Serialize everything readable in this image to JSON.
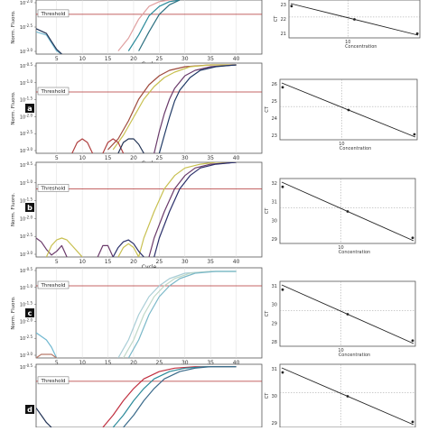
{
  "chart_data": [
    {
      "type": "line",
      "panel": "",
      "xlabel": "Cycle",
      "ylabel": "Norm. Fluoro.",
      "x_ticks": [
        5,
        10,
        15,
        20,
        25,
        30,
        35,
        40
      ],
      "y_ticks": [
        "10^-2.0",
        "10^-2.5",
        "10^-3.0"
      ],
      "xlim": [
        1,
        45
      ],
      "ylim": [
        -3.2,
        -1.5
      ],
      "yscale": "log10",
      "threshold_label": "Threshold",
      "threshold": -1.95,
      "series": [
        {
          "color": "#e0a0a0",
          "x": [
            17,
            19,
            21,
            23,
            25,
            27,
            29
          ],
          "y": [
            -3.1,
            -2.7,
            -2.1,
            -1.7,
            -1.55,
            -1.5,
            -1.5
          ]
        },
        {
          "color": "#2a8a9a",
          "x": [
            19,
            21,
            23,
            25,
            27,
            29
          ],
          "y": [
            -3.1,
            -2.6,
            -2.0,
            -1.7,
            -1.55,
            -1.5
          ]
        },
        {
          "color": "#2b6f80",
          "x": [
            21,
            23,
            25,
            27,
            29
          ],
          "y": [
            -3.1,
            -2.5,
            -1.95,
            -1.65,
            -1.5
          ]
        },
        {
          "color": "#70b8d0",
          "x": [
            1,
            3,
            4,
            5,
            6
          ],
          "y": [
            -2.5,
            -2.6,
            -2.85,
            -3.1,
            -3.2
          ]
        },
        {
          "color": "#223355",
          "x": [
            1,
            3,
            4,
            5,
            6
          ],
          "y": [
            -2.4,
            -2.55,
            -2.8,
            -3.05,
            -3.2
          ]
        }
      ],
      "std_curve": {
        "xlabel": "Concentration",
        "ylabel": "CT",
        "y_ticks": [
          "23",
          "22",
          "21"
        ],
        "x_tick_labels": [
          "10"
        ]
      }
    },
    {
      "type": "line",
      "panel": "a",
      "xlabel": "Cycle",
      "ylabel": "Norm. Fluoro.",
      "x_ticks": [
        5,
        10,
        15,
        20,
        25,
        30,
        35,
        40
      ],
      "y_ticks": [
        "10^-0.5",
        "10^-1.0",
        "10^-1.5",
        "10^-2.0",
        "10^-2.5",
        "10^-3.0"
      ],
      "xlim": [
        1,
        45
      ],
      "ylim": [
        -3.0,
        -0.5
      ],
      "yscale": "log10",
      "threshold_label": "Threshold",
      "threshold": -1.3,
      "series": [
        {
          "color": "#9e4a3c",
          "x": [
            15,
            17,
            19,
            21,
            23,
            25,
            27,
            30,
            35,
            40
          ],
          "y": [
            -2.9,
            -2.6,
            -2.1,
            -1.5,
            -1.1,
            -0.85,
            -0.7,
            -0.6,
            -0.55,
            -0.55
          ]
        },
        {
          "color": "#c8c050",
          "x": [
            16,
            18,
            20,
            22,
            24,
            26,
            28,
            31,
            35,
            40
          ],
          "y": [
            -2.9,
            -2.5,
            -2.0,
            -1.5,
            -1.15,
            -0.9,
            -0.75,
            -0.6,
            -0.55,
            -0.55
          ]
        },
        {
          "color": "#6a3a6a",
          "x": [
            24,
            25,
            26,
            27,
            28,
            30,
            32,
            35,
            40
          ],
          "y": [
            -3.0,
            -2.4,
            -1.9,
            -1.5,
            -1.2,
            -0.85,
            -0.7,
            -0.6,
            -0.55
          ]
        },
        {
          "color": "#203a66",
          "x": [
            25,
            26,
            27,
            28,
            29,
            31,
            33,
            36,
            40
          ],
          "y": [
            -3.0,
            -2.5,
            -2.0,
            -1.55,
            -1.25,
            -0.9,
            -0.7,
            -0.6,
            -0.55
          ]
        },
        {
          "color": "#b04040",
          "x": [
            8,
            9,
            10,
            11,
            12
          ],
          "y": [
            -3.0,
            -2.7,
            -2.6,
            -2.7,
            -3.0
          ]
        },
        {
          "color": "#b04040",
          "x": [
            14,
            15,
            16,
            17,
            18
          ],
          "y": [
            -3.0,
            -2.7,
            -2.6,
            -2.7,
            -3.0
          ]
        },
        {
          "color": "#223355",
          "x": [
            17,
            18,
            19,
            20,
            21,
            22
          ],
          "y": [
            -3.0,
            -2.7,
            -2.6,
            -2.6,
            -2.75,
            -3.0
          ]
        }
      ],
      "std_curve": {
        "xlabel": "Concentration",
        "ylabel": "CT",
        "y_ticks": [
          "26",
          "25",
          "24",
          "23"
        ],
        "x_tick_labels": [
          "10"
        ]
      }
    },
    {
      "type": "line",
      "panel": "b",
      "xlabel": "Cycle",
      "ylabel": "Norm. Fluoro.",
      "x_ticks": [
        5,
        10,
        15,
        20,
        25,
        30,
        35,
        40
      ],
      "y_ticks": [
        "10^-0.5",
        "10^-1.0",
        "10^-1.5",
        "10^-2.0",
        "10^-2.5",
        "10^-3.0"
      ],
      "xlim": [
        1,
        45
      ],
      "ylim": [
        -3.0,
        -0.5
      ],
      "yscale": "log10",
      "threshold_label": "Threshold",
      "threshold": -1.2,
      "series": [
        {
          "color": "#c8c050",
          "x": [
            21,
            22,
            24,
            26,
            28,
            30,
            33,
            36,
            40
          ],
          "y": [
            -3.0,
            -2.5,
            -1.8,
            -1.2,
            -0.85,
            -0.65,
            -0.55,
            -0.5,
            -0.5
          ]
        },
        {
          "color": "#6a3a6a",
          "x": [
            23,
            24,
            26,
            28,
            30,
            32,
            35,
            40
          ],
          "y": [
            -3.0,
            -2.5,
            -1.8,
            -1.2,
            -0.85,
            -0.65,
            -0.55,
            -0.5
          ]
        },
        {
          "color": "#2a2f6a",
          "x": [
            24,
            25,
            27,
            29,
            31,
            33,
            36,
            40
          ],
          "y": [
            -3.0,
            -2.5,
            -1.8,
            -1.2,
            -0.85,
            -0.65,
            -0.55,
            -0.5
          ]
        },
        {
          "color": "#6a3a6a",
          "x": [
            1,
            2,
            3,
            4,
            5,
            6,
            7
          ],
          "y": [
            -2.5,
            -2.6,
            -2.8,
            -2.95,
            -2.85,
            -2.7,
            -3.0
          ]
        },
        {
          "color": "#c8c050",
          "x": [
            3,
            4,
            5,
            6,
            7,
            8,
            9,
            10
          ],
          "y": [
            -3.0,
            -2.7,
            -2.55,
            -2.5,
            -2.55,
            -2.7,
            -2.85,
            -3.0
          ]
        },
        {
          "color": "#6a3a6a",
          "x": [
            13,
            14,
            15,
            16
          ],
          "y": [
            -3.0,
            -2.7,
            -2.7,
            -3.0
          ]
        },
        {
          "color": "#c8c050",
          "x": [
            17,
            18,
            19,
            20,
            21
          ],
          "y": [
            -3.0,
            -2.75,
            -2.65,
            -2.75,
            -3.0
          ]
        },
        {
          "color": "#2a2f6a",
          "x": [
            16,
            17,
            18,
            19,
            20,
            21,
            22
          ],
          "y": [
            -3.0,
            -2.75,
            -2.6,
            -2.55,
            -2.65,
            -2.85,
            -3.0
          ]
        }
      ],
      "std_curve": {
        "xlabel": "Concentration",
        "ylabel": "CT",
        "y_ticks": [
          "32",
          "31",
          "30",
          "29"
        ],
        "x_tick_labels": [
          "10"
        ]
      }
    },
    {
      "type": "line",
      "panel": "c",
      "xlabel": "Cycle",
      "ylabel": "Norm. Fluoro.",
      "x_ticks": [
        5,
        10,
        15,
        20,
        25,
        30,
        35,
        40
      ],
      "y_ticks": [
        "10^-0.5",
        "10^-1.0",
        "10^-1.5",
        "10^-2.0",
        "10^-2.5",
        "10^-3.0"
      ],
      "xlim": [
        1,
        45
      ],
      "ylim": [
        -3.0,
        -0.5
      ],
      "yscale": "log10",
      "threshold_label": "Threshold",
      "threshold": -1.0,
      "series": [
        {
          "color": "#a8cdd6",
          "x": [
            17,
            19,
            21,
            23,
            25,
            27,
            30,
            35,
            40
          ],
          "y": [
            -3.0,
            -2.5,
            -1.8,
            -1.3,
            -1.0,
            -0.8,
            -0.65,
            -0.6,
            -0.6
          ]
        },
        {
          "color": "#c0d8c8",
          "x": [
            18,
            20,
            22,
            24,
            26,
            28,
            31,
            35,
            40
          ],
          "y": [
            -3.0,
            -2.5,
            -1.8,
            -1.3,
            -1.0,
            -0.8,
            -0.65,
            -0.6,
            -0.6
          ]
        },
        {
          "color": "#7ab8c8",
          "x": [
            19,
            21,
            23,
            25,
            27,
            29,
            32,
            36,
            40
          ],
          "y": [
            -3.0,
            -2.5,
            -1.8,
            -1.3,
            -1.0,
            -0.8,
            -0.65,
            -0.6,
            -0.6
          ]
        },
        {
          "color": "#70b8d0",
          "x": [
            1,
            3,
            4,
            5,
            6
          ],
          "y": [
            -2.3,
            -2.5,
            -2.7,
            -3.0,
            -3.1
          ]
        },
        {
          "color": "#b87a6a",
          "x": [
            1,
            2,
            4,
            5
          ],
          "y": [
            -3.0,
            -2.9,
            -2.9,
            -3.0
          ]
        }
      ],
      "std_curve": {
        "xlabel": "Concentration",
        "ylabel": "CT",
        "y_ticks": [
          "31",
          "30",
          "29",
          "28"
        ],
        "x_tick_labels": [
          "10"
        ]
      }
    },
    {
      "type": "line",
      "panel": "d",
      "xlabel": "",
      "ylabel": "",
      "x_ticks": [],
      "y_ticks": [
        "10^-0.5"
      ],
      "xlim": [
        1,
        45
      ],
      "ylim": [
        -1.8,
        -0.5
      ],
      "yscale": "log10",
      "threshold_label": "Threshold",
      "threshold": -0.85,
      "series": [
        {
          "color": "#c03040",
          "x": [
            14,
            16,
            18,
            20,
            22,
            25,
            28,
            32,
            36,
            40
          ],
          "y": [
            -1.8,
            -1.55,
            -1.25,
            -1.0,
            -0.8,
            -0.65,
            -0.58,
            -0.55,
            -0.55,
            -0.55
          ]
        },
        {
          "color": "#2a8a9a",
          "x": [
            16,
            18,
            20,
            22,
            24,
            27,
            30,
            34,
            38,
            40
          ],
          "y": [
            -1.8,
            -1.55,
            -1.25,
            -1.0,
            -0.8,
            -0.65,
            -0.58,
            -0.55,
            -0.55,
            -0.55
          ]
        },
        {
          "color": "#3a6a8a",
          "x": [
            18,
            20,
            22,
            24,
            26,
            29,
            32,
            35,
            40
          ],
          "y": [
            -1.8,
            -1.55,
            -1.25,
            -1.0,
            -0.8,
            -0.65,
            -0.58,
            -0.55,
            -0.55
          ]
        },
        {
          "color": "#223355",
          "x": [
            1,
            2,
            3,
            4
          ],
          "y": [
            -1.4,
            -1.55,
            -1.7,
            -1.8
          ]
        }
      ],
      "std_curve": {
        "xlabel": "",
        "ylabel": "CT",
        "y_ticks": [
          "31",
          "30",
          "29"
        ],
        "x_tick_labels": []
      }
    }
  ]
}
